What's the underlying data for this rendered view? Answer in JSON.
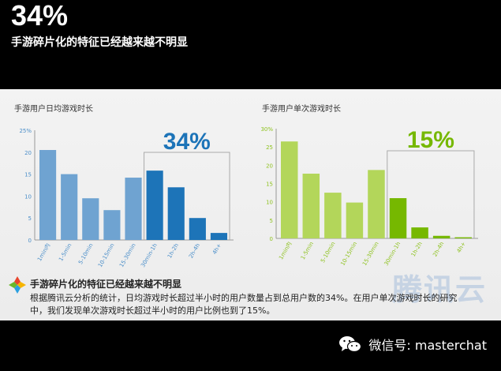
{
  "header": {
    "big_percent": "34%",
    "headline": "手游碎片化的特征已经越来越不明显"
  },
  "note": {
    "title": "手游碎片化的特征已经越来越不明显",
    "body_line1": "根据腾讯云分析的统计，日均游戏时长超过半小时的用户数量占到总用户数的34%。在用户单次游戏时长的研究",
    "body_line2": "中，我们发现单次游戏时长超过半小时的用户比例也到了15%。"
  },
  "watermark": "腾讯云",
  "footer": {
    "text": "微信号: masterchat",
    "icon": "wechat-icon"
  },
  "chart_data": [
    {
      "type": "bar",
      "title": "手游用户日均游戏时长",
      "callout": "34%",
      "categories": [
        "1min内",
        "1-5min",
        "5-10min",
        "10-15min",
        "15-30min",
        "30min-1h",
        "1h-2h",
        "2h-4h",
        "4h+"
      ],
      "values": [
        20.5,
        15,
        9.5,
        6.8,
        14.2,
        15.8,
        12,
        5,
        1.6
      ],
      "ylim": [
        0,
        25
      ],
      "yticks": [
        "0",
        "5",
        "10",
        "15",
        "20",
        "25%"
      ],
      "highlight_from_index": 5,
      "colors": {
        "base": "#6fa3d1",
        "highlight": "#1d74b8",
        "callout": "#1d74b8"
      }
    },
    {
      "type": "bar",
      "title": "手游用户单次游戏时长",
      "callout": "15%",
      "categories": [
        "1min内",
        "1-5min",
        "5-10min",
        "10-15min",
        "15-30min",
        "30min-1h",
        "1h-2h",
        "2h-4h",
        "4h+"
      ],
      "values": [
        26.5,
        17.7,
        12.5,
        9.8,
        18.7,
        11,
        3,
        0.7,
        0.3
      ],
      "ylim": [
        0,
        30
      ],
      "yticks": [
        "0",
        "5",
        "10",
        "15",
        "20",
        "25",
        "30%"
      ],
      "highlight_from_index": 5,
      "colors": {
        "base": "#b3d65a",
        "highlight": "#76b800",
        "callout": "#76b800"
      }
    }
  ]
}
